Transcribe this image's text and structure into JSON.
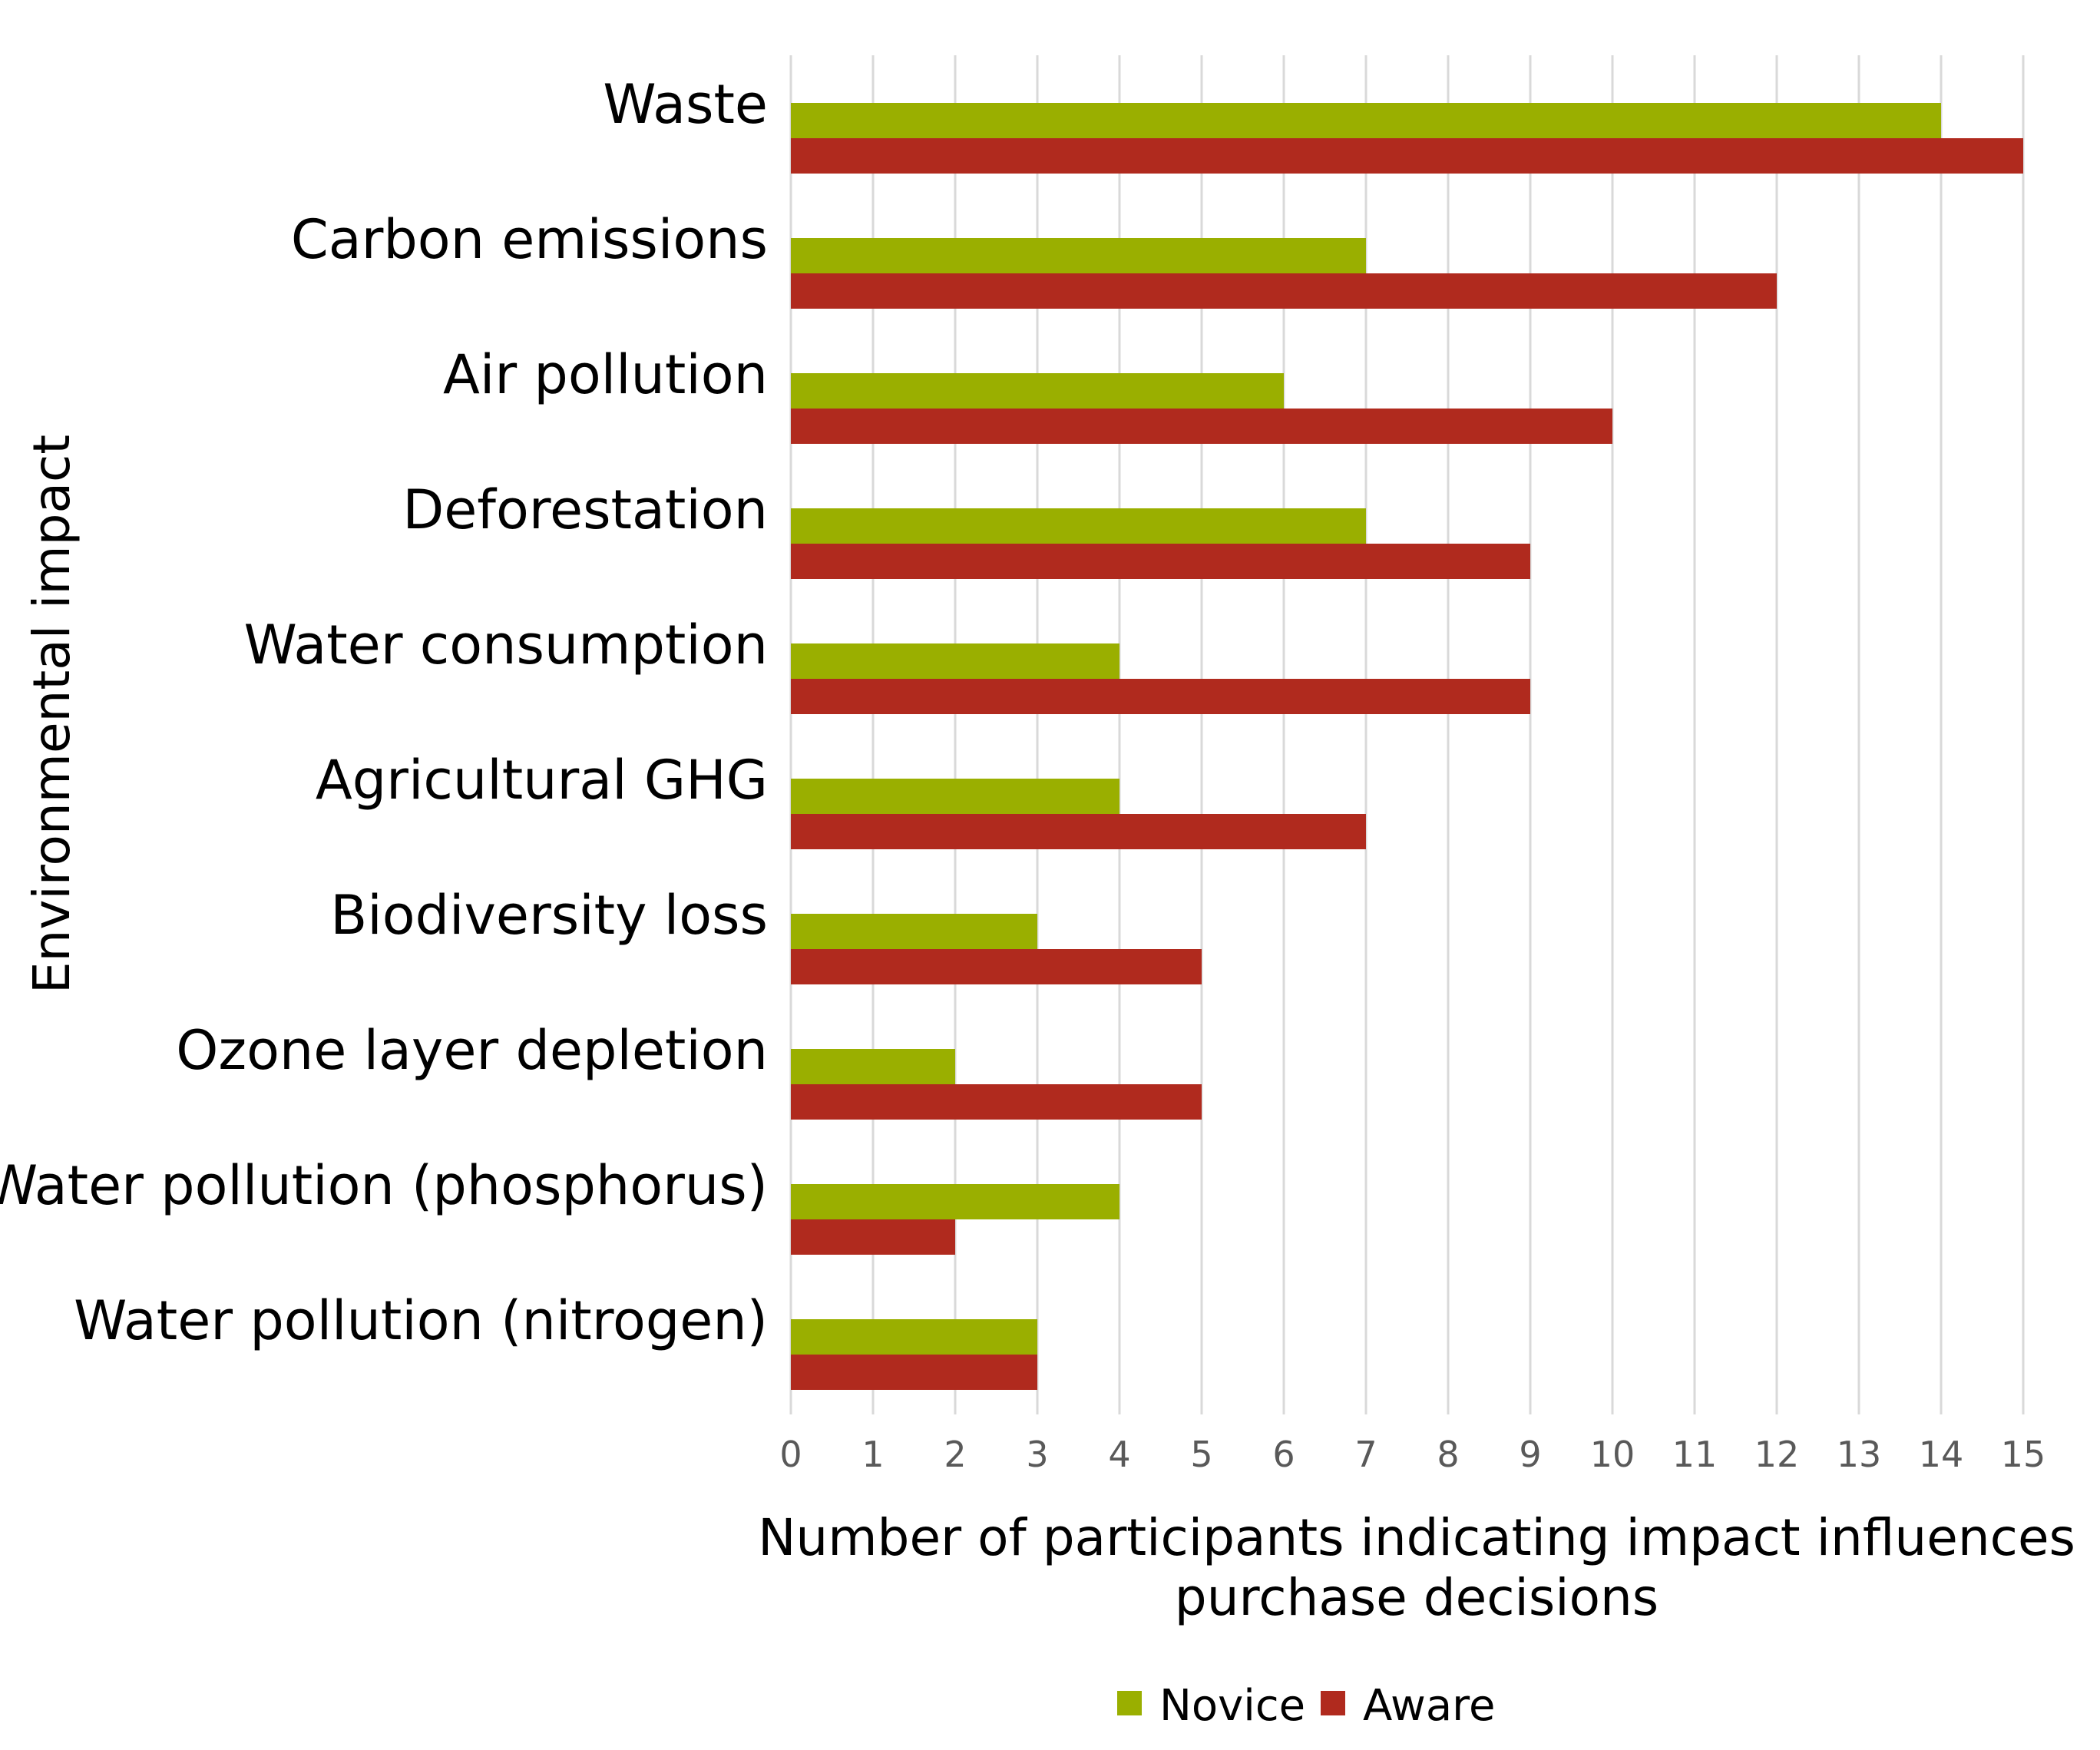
{
  "chart_data": {
    "type": "bar",
    "orientation": "horizontal",
    "categories": [
      "Waste",
      "Carbon emissions",
      "Air pollution",
      "Deforestation",
      "Water consumption",
      "Agricultural GHG",
      "Biodiversity loss",
      "Ozone layer depletion",
      "Water pollution (phosphorus)",
      "Water pollution (nitrogen)"
    ],
    "series": [
      {
        "name": "Novice",
        "color": "#9aaf00",
        "values": [
          14,
          7,
          6,
          7,
          4,
          4,
          3,
          2,
          4,
          3
        ]
      },
      {
        "name": "Aware",
        "color": "#b02a1e",
        "values": [
          15,
          12,
          10,
          9,
          9,
          7,
          5,
          5,
          2,
          3
        ]
      }
    ],
    "xlabel_lines": [
      "Number of participants indicating impact influences",
      "purchase decisions"
    ],
    "ylabel": "Environmental impact",
    "xlim": [
      0,
      15
    ],
    "xticks": [
      "0",
      "1",
      "2",
      "3",
      "4",
      "5",
      "6",
      "7",
      "8",
      "9",
      "10",
      "11",
      "12",
      "13",
      "14",
      "15"
    ],
    "grid": "vertical",
    "legend_position": "bottom-center"
  }
}
